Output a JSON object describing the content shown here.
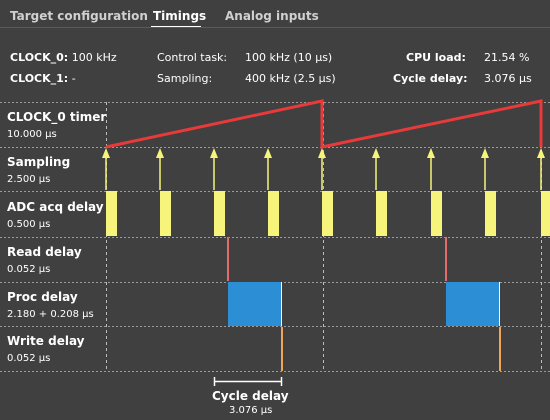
{
  "tabs": [
    {
      "label": "Target configuration",
      "active": false
    },
    {
      "label": "Timings",
      "active": true
    },
    {
      "label": "Analog inputs",
      "active": false
    }
  ],
  "info": {
    "clock0_label": "CLOCK_0:",
    "clock0_value": "100 kHz",
    "clock1_label": "CLOCK_1:",
    "clock1_value": "-",
    "control_task_label": "Control task:",
    "control_task_value": "100 kHz (10 µs)",
    "sampling_label": "Sampling:",
    "sampling_value": "400 kHz (2.5 µs)",
    "cpu_load_label": "CPU load:",
    "cpu_load_value": "21.54 %",
    "cycle_delay_label": "Cycle delay:",
    "cycle_delay_value": "3.076 µs"
  },
  "rows": [
    {
      "name": "CLOCK_0 timer",
      "value": "10.000 µs"
    },
    {
      "name": "Sampling",
      "value": "2.500 µs"
    },
    {
      "name": "ADC acq delay",
      "value": "0.500 µs"
    },
    {
      "name": "Read delay",
      "value": "0.052 µs"
    },
    {
      "name": "Proc delay",
      "value": "2.180 + 0.208 µs"
    },
    {
      "name": "Write delay",
      "value": "0.052 µs"
    }
  ],
  "cycle_delay_marker": {
    "label": "Cycle delay",
    "value": "3.076 µs"
  },
  "colors": {
    "background": "#404040",
    "timer": "#e83a3a",
    "sampling": "#f6f47a",
    "adc": "#f6f47a",
    "read": "#e26b6b",
    "proc": "#2c8fd6",
    "write": "#f2a35a",
    "grid": "#9a9a9a"
  }
}
